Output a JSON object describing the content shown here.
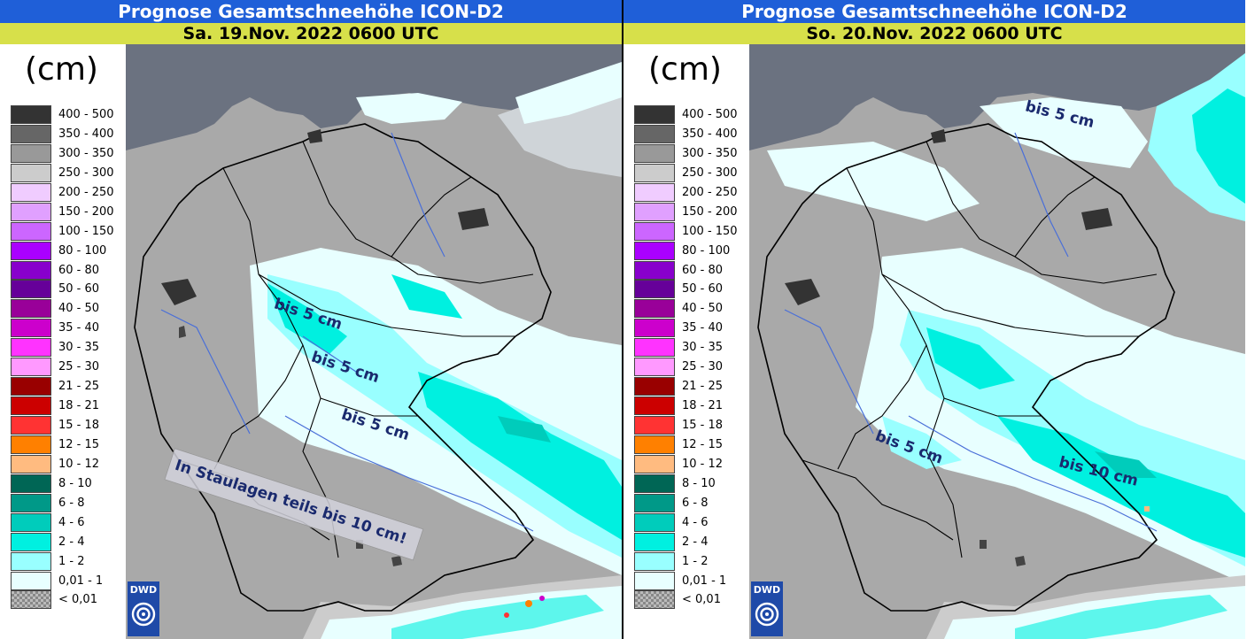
{
  "panels": [
    {
      "title": "Prognose Gesamtschneehöhe ICON-D2",
      "date": "Sa. 19.Nov. 2022 0600 UTC",
      "unit": "(cm)",
      "annotations": [
        "bis 5 cm",
        "bis 5 cm",
        "bis 5 cm"
      ],
      "note": "In Staulagen teils bis 10 cm!",
      "logo": "DWD"
    },
    {
      "title": "Prognose Gesamtschneehöhe ICON-D2",
      "date": "So. 20.Nov. 2022 0600 UTC",
      "unit": "(cm)",
      "annotations": [
        "bis 5 cm",
        "bis 5 cm",
        "bis 10 cm"
      ],
      "logo": "DWD"
    }
  ],
  "legend": [
    {
      "label": "400 - 500",
      "color": "#333333"
    },
    {
      "label": "350 - 400",
      "color": "#666666"
    },
    {
      "label": "300 - 350",
      "color": "#999999"
    },
    {
      "label": "250 - 300",
      "color": "#cccccc"
    },
    {
      "label": "200 - 250",
      "color": "#f0ccff"
    },
    {
      "label": "150 - 200",
      "color": "#e0a0ff"
    },
    {
      "label": "100 - 150",
      "color": "#cc66ff"
    },
    {
      "label": "80 - 100",
      "color": "#aa00ff"
    },
    {
      "label": "60 - 80",
      "color": "#8800cc"
    },
    {
      "label": "50 - 60",
      "color": "#660099"
    },
    {
      "label": "40 - 50",
      "color": "#990099"
    },
    {
      "label": "35 - 40",
      "color": "#cc00cc"
    },
    {
      "label": "30 - 35",
      "color": "#ff33ff"
    },
    {
      "label": "25 - 30",
      "color": "#ff99ff"
    },
    {
      "label": "21 - 25",
      "color": "#990000"
    },
    {
      "label": "18 - 21",
      "color": "#cc0000"
    },
    {
      "label": "15 - 18",
      "color": "#ff3333"
    },
    {
      "label": "12 - 15",
      "color": "#ff8000"
    },
    {
      "label": "10 - 12",
      "color": "#ffbb80"
    },
    {
      "label": "8 - 10",
      "color": "#006655"
    },
    {
      "label": "6 - 8",
      "color": "#009988"
    },
    {
      "label": "4 - 6",
      "color": "#00ccbb"
    },
    {
      "label": "2 - 4",
      "color": "#00f0e0"
    },
    {
      "label": "1 - 2",
      "color": "#99ffff"
    },
    {
      "label": "0,01 - 1",
      "color": "#e8ffff"
    },
    {
      "label": "< 0,01",
      "color": "#aaaaaa"
    }
  ],
  "colors": {
    "title_bg": "#1f5fd8",
    "date_bg": "#d7e04a",
    "sea": "#6b7280",
    "land": "#a9a9a9",
    "snow_light": "#e8ffff",
    "snow_2_4": "#00f0e0"
  }
}
